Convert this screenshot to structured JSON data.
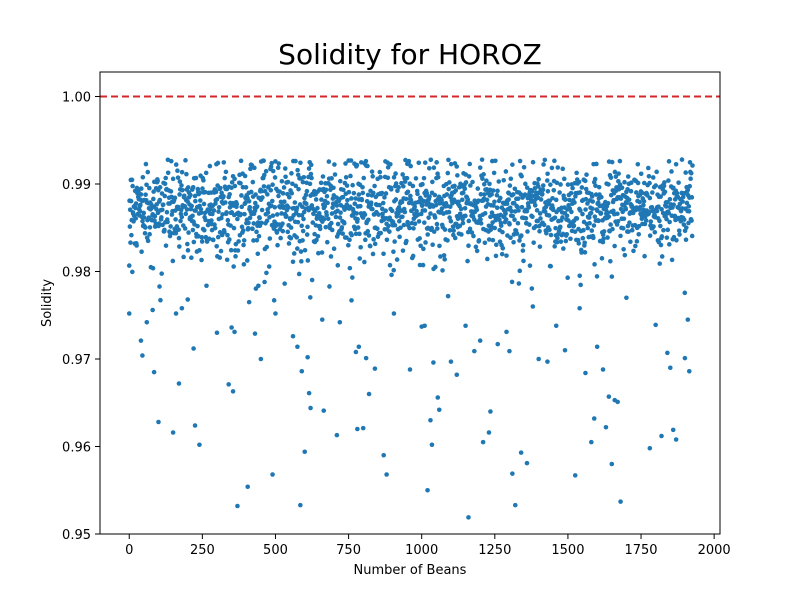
{
  "chart_data": {
    "type": "scatter",
    "title": "Solidity for HOROZ",
    "xlabel": "Number of Beans",
    "ylabel": "Solidity",
    "xlim": [
      -100,
      2020
    ],
    "ylim": [
      0.95,
      1.0028
    ],
    "xticks": [
      0,
      250,
      500,
      750,
      1000,
      1250,
      1500,
      1750,
      2000
    ],
    "yticks": [
      0.95,
      0.96,
      0.97,
      0.98,
      0.99,
      1.0
    ],
    "xtick_labels": [
      "0",
      "250",
      "500",
      "750",
      "1000",
      "1250",
      "1500",
      "1750",
      "2000"
    ],
    "ytick_labels": [
      "0.95",
      "0.96",
      "0.97",
      "0.98",
      "0.99",
      "1.00"
    ],
    "grid": false,
    "reference_line": {
      "y": 1.0,
      "style": "dashed"
    },
    "n_points": 1928,
    "point_color": "#1f77b4",
    "line_color": "#d62728",
    "outliers": [
      [
        0,
        0.9752
      ],
      [
        40,
        0.9721
      ],
      [
        45,
        0.9704
      ],
      [
        60,
        0.9742
      ],
      [
        80,
        0.9756
      ],
      [
        85,
        0.9685
      ],
      [
        100,
        0.9628
      ],
      [
        150,
        0.9616
      ],
      [
        160,
        0.9752
      ],
      [
        170,
        0.9672
      ],
      [
        180,
        0.9758
      ],
      [
        200,
        0.9768
      ],
      [
        220,
        0.9712
      ],
      [
        225,
        0.9624
      ],
      [
        240,
        0.9602
      ],
      [
        300,
        0.973
      ],
      [
        340,
        0.9671
      ],
      [
        350,
        0.9736
      ],
      [
        355,
        0.9663
      ],
      [
        360,
        0.9731
      ],
      [
        370,
        0.9532
      ],
      [
        405,
        0.9554
      ],
      [
        410,
        0.9765
      ],
      [
        430,
        0.9729
      ],
      [
        450,
        0.97
      ],
      [
        490,
        0.9568
      ],
      [
        500,
        0.9752
      ],
      [
        560,
        0.9726
      ],
      [
        575,
        0.9714
      ],
      [
        585,
        0.9533
      ],
      [
        590,
        0.9686
      ],
      [
        600,
        0.9594
      ],
      [
        610,
        0.9702
      ],
      [
        615,
        0.9661
      ],
      [
        620,
        0.9644
      ],
      [
        660,
        0.9745
      ],
      [
        665,
        0.9641
      ],
      [
        710,
        0.9613
      ],
      [
        720,
        0.9742
      ],
      [
        760,
        0.9767
      ],
      [
        775,
        0.9708
      ],
      [
        780,
        0.962
      ],
      [
        785,
        0.9714
      ],
      [
        800,
        0.9621
      ],
      [
        810,
        0.9701
      ],
      [
        820,
        0.966
      ],
      [
        840,
        0.9689
      ],
      [
        870,
        0.959
      ],
      [
        880,
        0.9568
      ],
      [
        905,
        0.9752
      ],
      [
        960,
        0.9688
      ],
      [
        1000,
        0.9737
      ],
      [
        1010,
        0.9738
      ],
      [
        1020,
        0.955
      ],
      [
        1030,
        0.963
      ],
      [
        1035,
        0.9602
      ],
      [
        1040,
        0.9696
      ],
      [
        1055,
        0.9656
      ],
      [
        1060,
        0.9642
      ],
      [
        1100,
        0.9697
      ],
      [
        1120,
        0.9682
      ],
      [
        1150,
        0.9738
      ],
      [
        1160,
        0.9519
      ],
      [
        1180,
        0.9709
      ],
      [
        1200,
        0.9721
      ],
      [
        1210,
        0.9605
      ],
      [
        1230,
        0.9616
      ],
      [
        1235,
        0.964
      ],
      [
        1260,
        0.9717
      ],
      [
        1290,
        0.9731
      ],
      [
        1300,
        0.9709
      ],
      [
        1310,
        0.9569
      ],
      [
        1320,
        0.9533
      ],
      [
        1340,
        0.9593
      ],
      [
        1360,
        0.9581
      ],
      [
        1380,
        0.976
      ],
      [
        1400,
        0.97
      ],
      [
        1430,
        0.9697
      ],
      [
        1460,
        0.9738
      ],
      [
        1490,
        0.971
      ],
      [
        1525,
        0.9567
      ],
      [
        1540,
        0.9758
      ],
      [
        1560,
        0.9684
      ],
      [
        1580,
        0.9605
      ],
      [
        1590,
        0.9632
      ],
      [
        1600,
        0.9714
      ],
      [
        1620,
        0.9688
      ],
      [
        1630,
        0.9622
      ],
      [
        1640,
        0.9657
      ],
      [
        1650,
        0.958
      ],
      [
        1660,
        0.9653
      ],
      [
        1670,
        0.9651
      ],
      [
        1680,
        0.9537
      ],
      [
        1700,
        0.977
      ],
      [
        1780,
        0.9598
      ],
      [
        1800,
        0.9739
      ],
      [
        1820,
        0.9612
      ],
      [
        1840,
        0.9707
      ],
      [
        1850,
        0.969
      ],
      [
        1860,
        0.9619
      ],
      [
        1870,
        0.9608
      ],
      [
        1900,
        0.9701
      ],
      [
        1910,
        0.9745
      ],
      [
        1915,
        0.9686
      ]
    ]
  }
}
